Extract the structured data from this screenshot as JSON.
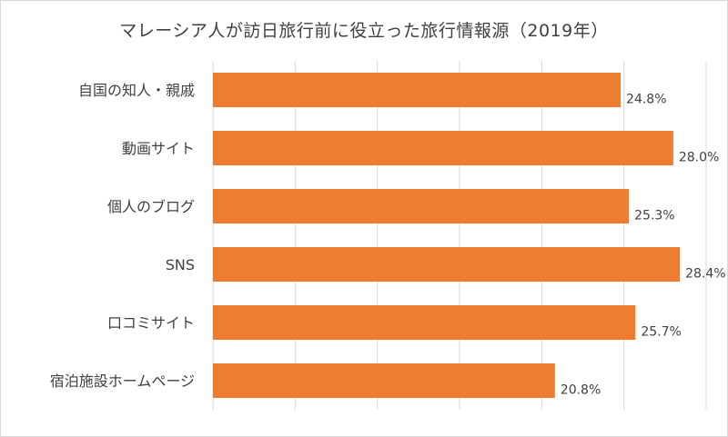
{
  "chart_data": {
    "type": "bar",
    "orientation": "horizontal",
    "title": "マレーシア人が訪日旅行前に役立った旅行情報源（2019年）",
    "categories": [
      "自国の知人・親戚",
      "動画サイト",
      "個人のブログ",
      "SNS",
      "口コミサイト",
      "宿泊施設ホームページ"
    ],
    "values": [
      24.8,
      28.0,
      25.3,
      28.4,
      25.7,
      20.8
    ],
    "value_labels": [
      "24.8%",
      "28.0%",
      "25.3%",
      "28.4%",
      "25.7%",
      "20.8%"
    ],
    "xlim": [
      0,
      30
    ],
    "grid": true,
    "legend": "none",
    "bar_color": "#ED7D31",
    "grid_color": "#d9d9d9"
  }
}
